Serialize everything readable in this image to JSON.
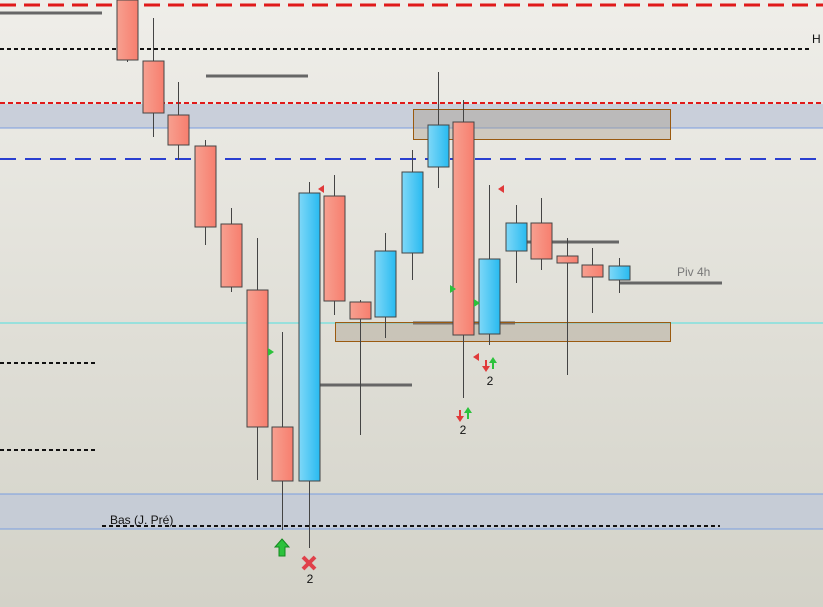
{
  "labels": {
    "high": "H",
    "pivot": "Piv 4h",
    "low": "Bas (J. Pré)"
  },
  "signals": [
    "2",
    "2",
    "2"
  ]
}
